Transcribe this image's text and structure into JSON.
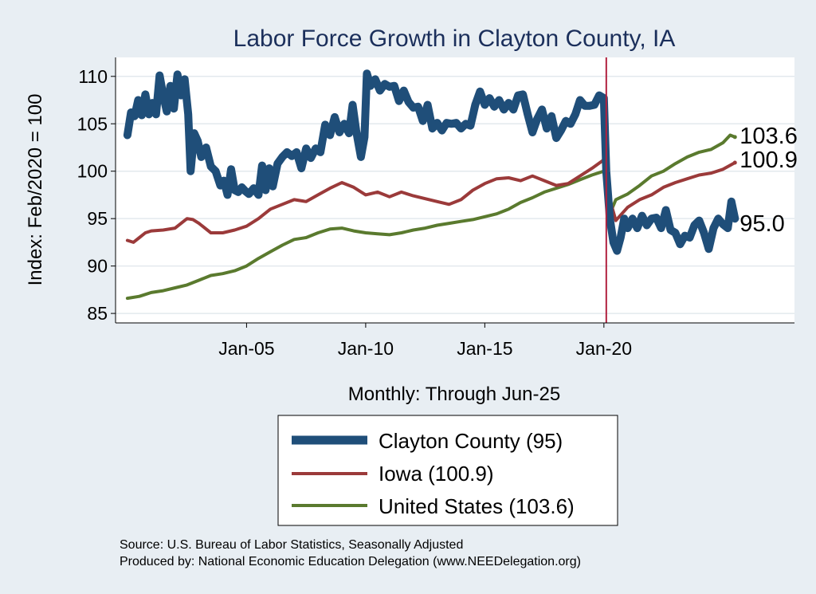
{
  "chart_data": {
    "type": "line",
    "title": "Labor Force Growth in Clayton  County, IA",
    "xlabel": "Monthly: Through Jun-25",
    "ylabel": "Index: Feb/2020 = 100",
    "ylim": [
      84,
      112
    ],
    "xlim": [
      1999.5,
      2028.0
    ],
    "yticks": [
      85,
      90,
      95,
      100,
      105,
      110
    ],
    "xticks": [
      {
        "value": 2005.0,
        "label": "Jan-05"
      },
      {
        "value": 2010.0,
        "label": "Jan-10"
      },
      {
        "value": 2015.0,
        "label": "Jan-15"
      },
      {
        "value": 2020.0,
        "label": "Jan-20"
      }
    ],
    "reference_line": {
      "x": 2020.1
    },
    "grid": true,
    "series": [
      {
        "name": "Clayton  County",
        "legend": "Clayton  County (95)",
        "color": "#1f4e79",
        "end_label": "95.0",
        "points": [
          [
            2000.0,
            103.8
          ],
          [
            2000.15,
            106.2
          ],
          [
            2000.3,
            105.8
          ],
          [
            2000.45,
            107.5
          ],
          [
            2000.6,
            105.9
          ],
          [
            2000.75,
            108.1
          ],
          [
            2000.9,
            106.0
          ],
          [
            2001.05,
            107.2
          ],
          [
            2001.2,
            106.0
          ],
          [
            2001.35,
            110.1
          ],
          [
            2001.5,
            108.0
          ],
          [
            2001.65,
            106.3
          ],
          [
            2001.8,
            109.0
          ],
          [
            2001.95,
            106.6
          ],
          [
            2002.1,
            110.2
          ],
          [
            2002.25,
            108.0
          ],
          [
            2002.4,
            109.7
          ],
          [
            2002.55,
            106.0
          ],
          [
            2002.65,
            100.0
          ],
          [
            2002.8,
            104.0
          ],
          [
            2002.95,
            103.2
          ],
          [
            2003.1,
            101.5
          ],
          [
            2003.3,
            102.5
          ],
          [
            2003.5,
            100.5
          ],
          [
            2003.7,
            100.0
          ],
          [
            2003.9,
            98.5
          ],
          [
            2004.05,
            99.0
          ],
          [
            2004.2,
            97.5
          ],
          [
            2004.35,
            100.2
          ],
          [
            2004.5,
            98.0
          ],
          [
            2004.65,
            97.8
          ],
          [
            2004.8,
            98.3
          ],
          [
            2004.95,
            97.9
          ],
          [
            2005.1,
            97.6
          ],
          [
            2005.3,
            98.2
          ],
          [
            2005.5,
            97.5
          ],
          [
            2005.65,
            100.6
          ],
          [
            2005.8,
            98.0
          ],
          [
            2005.95,
            100.3
          ],
          [
            2006.1,
            98.4
          ],
          [
            2006.3,
            100.8
          ],
          [
            2006.5,
            101.5
          ],
          [
            2006.7,
            102.0
          ],
          [
            2006.9,
            101.6
          ],
          [
            2007.1,
            102.0
          ],
          [
            2007.3,
            100.3
          ],
          [
            2007.5,
            102.4
          ],
          [
            2007.7,
            101.4
          ],
          [
            2007.9,
            102.4
          ],
          [
            2008.1,
            102.0
          ],
          [
            2008.3,
            104.9
          ],
          [
            2008.5,
            103.8
          ],
          [
            2008.7,
            105.7
          ],
          [
            2008.9,
            104.1
          ],
          [
            2009.1,
            105.0
          ],
          [
            2009.3,
            104.0
          ],
          [
            2009.45,
            107.0
          ],
          [
            2009.6,
            104.3
          ],
          [
            2009.8,
            101.5
          ],
          [
            2009.95,
            103.6
          ],
          [
            2010.05,
            110.3
          ],
          [
            2010.2,
            109.0
          ],
          [
            2010.4,
            109.7
          ],
          [
            2010.6,
            108.5
          ],
          [
            2010.8,
            109.2
          ],
          [
            2011.0,
            108.9
          ],
          [
            2011.2,
            109.0
          ],
          [
            2011.4,
            107.4
          ],
          [
            2011.6,
            108.5
          ],
          [
            2011.8,
            107.3
          ],
          [
            2012.0,
            106.7
          ],
          [
            2012.2,
            106.8
          ],
          [
            2012.4,
            105.3
          ],
          [
            2012.6,
            107.0
          ],
          [
            2012.8,
            104.5
          ],
          [
            2013.0,
            105.1
          ],
          [
            2013.2,
            104.3
          ],
          [
            2013.4,
            105.1
          ],
          [
            2013.6,
            105.0
          ],
          [
            2013.8,
            105.1
          ],
          [
            2014.0,
            104.5
          ],
          [
            2014.2,
            105.0
          ],
          [
            2014.4,
            104.8
          ],
          [
            2014.6,
            107.0
          ],
          [
            2014.8,
            108.4
          ],
          [
            2015.0,
            107.0
          ],
          [
            2015.2,
            107.7
          ],
          [
            2015.4,
            106.8
          ],
          [
            2015.6,
            107.5
          ],
          [
            2015.8,
            106.5
          ],
          [
            2016.0,
            107.2
          ],
          [
            2016.2,
            106.5
          ],
          [
            2016.4,
            108.0
          ],
          [
            2016.6,
            108.1
          ],
          [
            2016.8,
            106.0
          ],
          [
            2017.0,
            104.1
          ],
          [
            2017.2,
            105.5
          ],
          [
            2017.4,
            106.5
          ],
          [
            2017.6,
            104.5
          ],
          [
            2017.8,
            105.8
          ],
          [
            2018.0,
            103.5
          ],
          [
            2018.2,
            104.3
          ],
          [
            2018.4,
            105.3
          ],
          [
            2018.6,
            105.0
          ],
          [
            2018.8,
            106.0
          ],
          [
            2019.0,
            107.5
          ],
          [
            2019.2,
            106.9
          ],
          [
            2019.4,
            106.9
          ],
          [
            2019.6,
            107.0
          ],
          [
            2019.8,
            108.0
          ],
          [
            2020.0,
            107.7
          ],
          [
            2020.1,
            100.0
          ],
          [
            2020.25,
            95.0
          ],
          [
            2020.4,
            92.5
          ],
          [
            2020.55,
            91.6
          ],
          [
            2020.7,
            93.0
          ],
          [
            2020.85,
            95.0
          ],
          [
            2021.0,
            94.0
          ],
          [
            2021.2,
            95.0
          ],
          [
            2021.4,
            94.0
          ],
          [
            2021.6,
            95.3
          ],
          [
            2021.8,
            94.3
          ],
          [
            2022.0,
            95.0
          ],
          [
            2022.2,
            95.1
          ],
          [
            2022.4,
            94.0
          ],
          [
            2022.6,
            95.9
          ],
          [
            2022.8,
            93.8
          ],
          [
            2023.0,
            93.5
          ],
          [
            2023.2,
            92.3
          ],
          [
            2023.4,
            93.2
          ],
          [
            2023.6,
            93.0
          ],
          [
            2023.8,
            94.3
          ],
          [
            2024.0,
            94.8
          ],
          [
            2024.2,
            93.5
          ],
          [
            2024.4,
            91.8
          ],
          [
            2024.6,
            94.0
          ],
          [
            2024.8,
            95.0
          ],
          [
            2025.0,
            94.4
          ],
          [
            2025.2,
            94.0
          ],
          [
            2025.35,
            96.8
          ],
          [
            2025.5,
            95.0
          ]
        ]
      },
      {
        "name": "Iowa",
        "legend": "Iowa (100.9)",
        "color": "#9b3a3a",
        "end_label": "100.9",
        "points": [
          [
            2000.0,
            92.7
          ],
          [
            2000.25,
            92.5
          ],
          [
            2000.5,
            93.0
          ],
          [
            2000.75,
            93.5
          ],
          [
            2001.0,
            93.7
          ],
          [
            2001.5,
            93.8
          ],
          [
            2002.0,
            94.0
          ],
          [
            2002.5,
            95.0
          ],
          [
            2002.75,
            94.9
          ],
          [
            2003.0,
            94.5
          ],
          [
            2003.5,
            93.5
          ],
          [
            2004.0,
            93.5
          ],
          [
            2004.5,
            93.8
          ],
          [
            2005.0,
            94.2
          ],
          [
            2005.5,
            95.0
          ],
          [
            2006.0,
            96.0
          ],
          [
            2006.5,
            96.5
          ],
          [
            2007.0,
            97.0
          ],
          [
            2007.5,
            96.8
          ],
          [
            2008.0,
            97.5
          ],
          [
            2008.5,
            98.2
          ],
          [
            2009.0,
            98.8
          ],
          [
            2009.5,
            98.3
          ],
          [
            2010.0,
            97.5
          ],
          [
            2010.5,
            97.8
          ],
          [
            2011.0,
            97.3
          ],
          [
            2011.5,
            97.8
          ],
          [
            2012.0,
            97.4
          ],
          [
            2012.5,
            97.1
          ],
          [
            2013.0,
            96.8
          ],
          [
            2013.5,
            96.5
          ],
          [
            2014.0,
            97.0
          ],
          [
            2014.5,
            98.0
          ],
          [
            2015.0,
            98.7
          ],
          [
            2015.5,
            99.2
          ],
          [
            2016.0,
            99.3
          ],
          [
            2016.5,
            99.0
          ],
          [
            2017.0,
            99.5
          ],
          [
            2017.5,
            99.0
          ],
          [
            2018.0,
            98.5
          ],
          [
            2018.5,
            98.7
          ],
          [
            2019.0,
            99.5
          ],
          [
            2019.5,
            100.3
          ],
          [
            2020.0,
            101.2
          ],
          [
            2020.25,
            97.0
          ],
          [
            2020.5,
            94.8
          ],
          [
            2020.75,
            95.5
          ],
          [
            2021.0,
            96.2
          ],
          [
            2021.5,
            97.0
          ],
          [
            2022.0,
            97.5
          ],
          [
            2022.5,
            98.3
          ],
          [
            2023.0,
            98.8
          ],
          [
            2023.5,
            99.2
          ],
          [
            2024.0,
            99.6
          ],
          [
            2024.5,
            99.8
          ],
          [
            2025.0,
            100.2
          ],
          [
            2025.5,
            100.9
          ]
        ]
      },
      {
        "name": "United States",
        "legend": "United States (103.6)",
        "color": "#5a7a2e",
        "end_label": "103.6",
        "points": [
          [
            2000.0,
            86.6
          ],
          [
            2000.5,
            86.8
          ],
          [
            2001.0,
            87.2
          ],
          [
            2001.5,
            87.4
          ],
          [
            2002.0,
            87.7
          ],
          [
            2002.5,
            88.0
          ],
          [
            2003.0,
            88.5
          ],
          [
            2003.5,
            89.0
          ],
          [
            2004.0,
            89.2
          ],
          [
            2004.5,
            89.5
          ],
          [
            2005.0,
            90.0
          ],
          [
            2005.5,
            90.8
          ],
          [
            2006.0,
            91.5
          ],
          [
            2006.5,
            92.2
          ],
          [
            2007.0,
            92.8
          ],
          [
            2007.5,
            93.0
          ],
          [
            2008.0,
            93.5
          ],
          [
            2008.5,
            93.9
          ],
          [
            2009.0,
            94.0
          ],
          [
            2009.5,
            93.7
          ],
          [
            2010.0,
            93.5
          ],
          [
            2010.5,
            93.4
          ],
          [
            2011.0,
            93.3
          ],
          [
            2011.5,
            93.5
          ],
          [
            2012.0,
            93.8
          ],
          [
            2012.5,
            94.0
          ],
          [
            2013.0,
            94.3
          ],
          [
            2013.5,
            94.5
          ],
          [
            2014.0,
            94.7
          ],
          [
            2014.5,
            94.9
          ],
          [
            2015.0,
            95.2
          ],
          [
            2015.5,
            95.5
          ],
          [
            2016.0,
            96.0
          ],
          [
            2016.5,
            96.7
          ],
          [
            2017.0,
            97.2
          ],
          [
            2017.5,
            97.8
          ],
          [
            2018.0,
            98.2
          ],
          [
            2018.5,
            98.6
          ],
          [
            2019.0,
            99.1
          ],
          [
            2019.5,
            99.6
          ],
          [
            2020.0,
            100.0
          ],
          [
            2020.25,
            95.5
          ],
          [
            2020.5,
            97.0
          ],
          [
            2020.75,
            97.3
          ],
          [
            2021.0,
            97.6
          ],
          [
            2021.5,
            98.5
          ],
          [
            2022.0,
            99.5
          ],
          [
            2022.5,
            100.0
          ],
          [
            2023.0,
            100.8
          ],
          [
            2023.5,
            101.5
          ],
          [
            2024.0,
            102.0
          ],
          [
            2024.5,
            102.3
          ],
          [
            2025.0,
            103.0
          ],
          [
            2025.3,
            103.8
          ],
          [
            2025.5,
            103.6
          ]
        ]
      }
    ]
  },
  "source_lines": [
    "Source: U.S. Bureau of Labor Statistics, Seasonally Adjusted",
    "Produced by: National Economic Education Delegation (www.NEEDelegation.org)"
  ]
}
